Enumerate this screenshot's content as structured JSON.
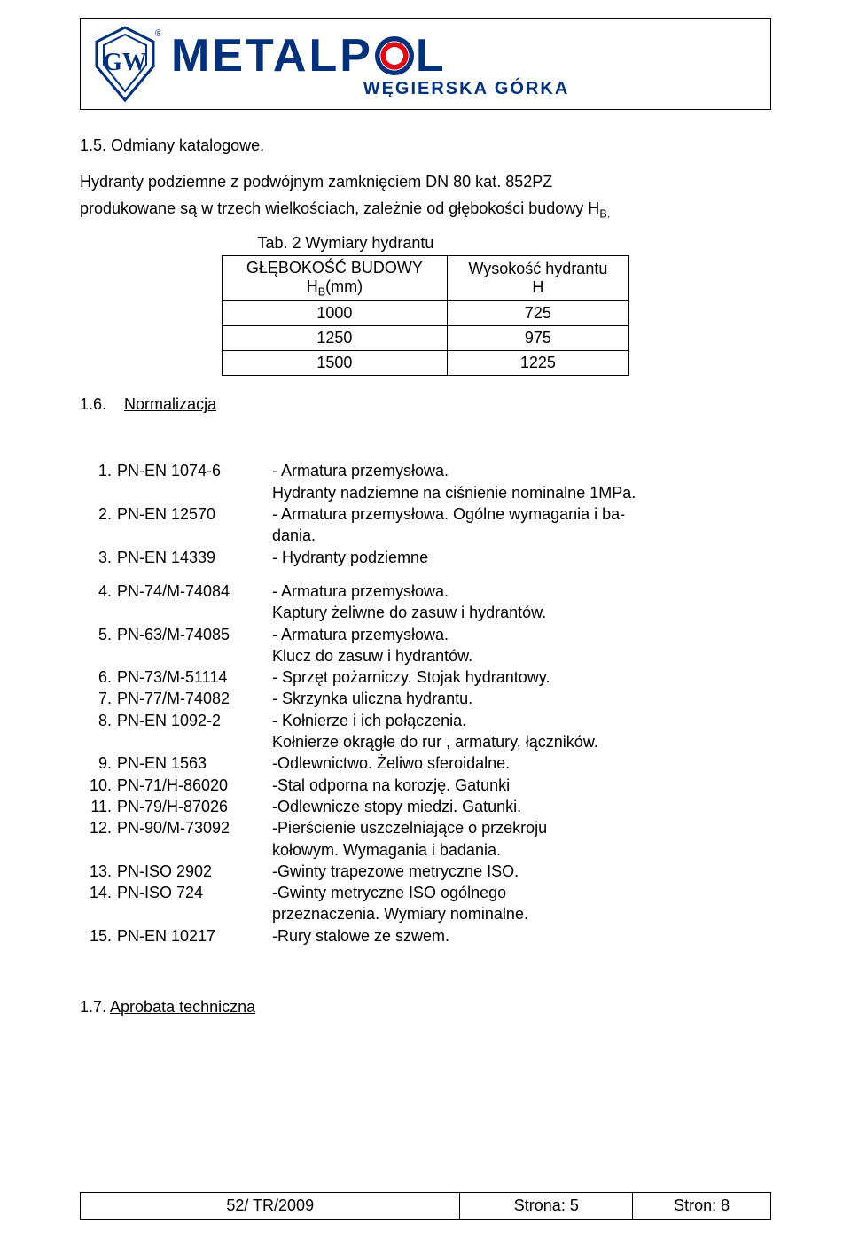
{
  "brand": {
    "name_prefix": "METALP",
    "name_suffix": "L",
    "subtitle": "WĘGIERSKA GÓRKA",
    "shield_letters": "GW",
    "shield_stroke": "#00317a",
    "shield_fill": "#ffffff",
    "reg_mark": "®"
  },
  "colors": {
    "brand_blue": "#00317a",
    "brand_red": "#e30613",
    "text": "#000000",
    "bg": "#ffffff"
  },
  "section_1_5": {
    "heading": "1.5. Odmiany katalogowe.",
    "para1": "Hydranty podziemne z podwójnym zamknięciem DN 80 kat. 852PZ",
    "para2_pre": "produkowane są w trzech wielkościach, zależnie od głębokości budowy H",
    "para2_sub": "B.",
    "table": {
      "caption": "Tab. 2 Wymiary hydrantu",
      "col1_header": "GŁĘBOKOŚĆ BUDOWY",
      "col1_sub_pre": "H",
      "col1_sub_sub": "B",
      "col1_sub_post": "(mm)",
      "col2_header": "Wysokość hydrantu",
      "col2_sub": "H",
      "rows": [
        {
          "depth": "1000",
          "height": "725"
        },
        {
          "depth": "1250",
          "height": "975"
        },
        {
          "depth": "1500",
          "height": "1225"
        }
      ]
    }
  },
  "section_1_6": {
    "heading": "1.6.",
    "heading_link": "Normalizacja",
    "items": [
      {
        "n": "1.",
        "code": "PN-EN 1074-6",
        "desc": "- Armatura przemysłowa.",
        "cont": [
          "Hydranty nadziemne na ciśnienie nominalne 1MPa."
        ]
      },
      {
        "n": "2.",
        "code": "PN-EN 12570",
        "desc": "-  Armatura przemysłowa. Ogólne wymagania i ba-",
        "cont": [
          "dania."
        ]
      },
      {
        "n": "3.",
        "code": "PN-EN 14339",
        "desc": "-  Hydranty podziemne",
        "cont": []
      }
    ],
    "items2": [
      {
        "n": "4.",
        "code": "PN-74/M-74084",
        "desc": "- Armatura przemysłowa.",
        "cont": [
          "Kaptury żeliwne do zasuw i hydrantów."
        ]
      },
      {
        "n": "5.",
        "code": "PN-63/M-74085",
        "desc": "- Armatura przemysłowa.",
        "cont": [
          "Klucz do zasuw i hydrantów."
        ]
      },
      {
        "n": "6.",
        "code": "PN-73/M-51114",
        "desc": "- Sprzęt pożarniczy. Stojak hydrantowy.",
        "cont": []
      },
      {
        "n": "7.",
        "code": "PN-77/M-74082",
        "desc": "- Skrzynka uliczna hydrantu.",
        "cont": []
      },
      {
        "n": "8.",
        "code": "PN-EN 1092-2",
        "desc": "- Kołnierze i ich połączenia.",
        "cont": [
          "Kołnierze okrągłe do rur , armatury, łączników."
        ]
      },
      {
        "n": "9.",
        "code": "PN-EN 1563",
        "desc": "-Odlewnictwo. Żeliwo sferoidalne.",
        "cont": []
      },
      {
        "n": "10.",
        "code": "PN-71/H-86020",
        "desc": "-Stal odporna na korozję. Gatunki",
        "cont": []
      },
      {
        "n": "11.",
        "code": "PN-79/H-87026",
        "desc": "-Odlewnicze stopy miedzi. Gatunki.",
        "cont": []
      },
      {
        "n": "12.",
        "code": "PN-90/M-73092",
        "desc": "-Pierścienie uszczelniające o przekroju",
        "cont": [
          " kołowym. Wymagania i badania."
        ]
      },
      {
        "n": "13.",
        "code": "PN-ISO 2902",
        "desc": "-Gwinty trapezowe metryczne ISO.",
        "cont": []
      },
      {
        "n": "14.",
        "code": "PN-ISO 724",
        "desc": "-Gwinty metryczne ISO ogólnego",
        "cont": [
          " przeznaczenia. Wymiary nominalne."
        ]
      },
      {
        "n": "15.",
        "code": "PN-EN 10217",
        "desc": "-Rury stalowe ze szwem.",
        "cont": []
      }
    ]
  },
  "section_1_7": {
    "heading": "1.7. ",
    "heading_link": "Aprobata techniczna"
  },
  "footer": {
    "doc": "52/ TR/2009",
    "page_label": "Strona:   5",
    "total_label": "Stron: 8"
  }
}
